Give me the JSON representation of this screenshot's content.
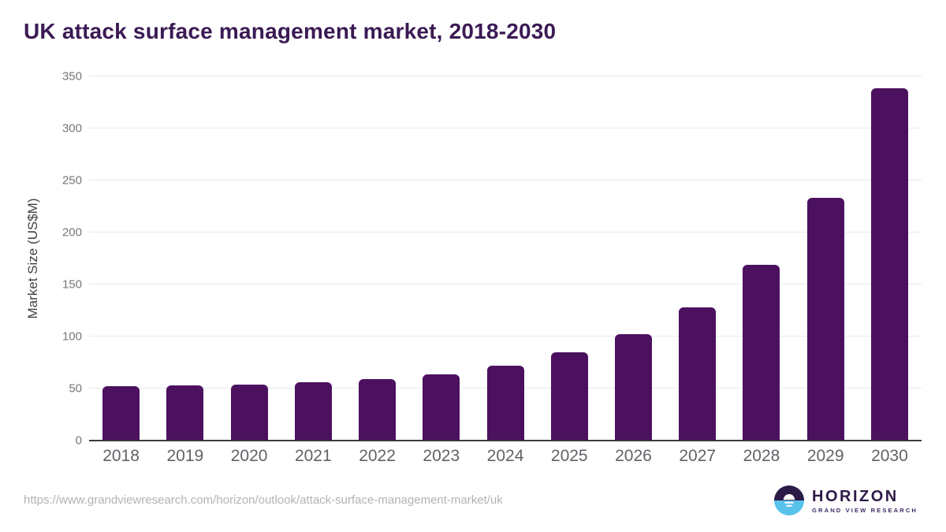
{
  "title": "UK attack surface management market, 2018-2030",
  "source_url": "https://www.grandviewresearch.com/horizon/outlook/attack-surface-management-market/uk",
  "logo": {
    "brand": "HORIZON",
    "subbrand": "GRAND VIEW RESEARCH"
  },
  "colors": {
    "bar": "#4b115f",
    "title": "#3b1a54",
    "gridline": "#e9e9e9",
    "axis_line": "#3a3a3a",
    "y_tick_label": "#757575",
    "x_tick_label": "#5f6368",
    "source_text": "#b3b3b3",
    "logo_dark_purple": "#2d1b47",
    "logo_light_blue": "#58c2ea"
  },
  "chart_data": {
    "type": "bar",
    "title": "UK attack surface management market, 2018-2030",
    "categories": [
      "2018",
      "2019",
      "2020",
      "2021",
      "2022",
      "2023",
      "2024",
      "2025",
      "2026",
      "2027",
      "2028",
      "2029",
      "2030"
    ],
    "values": [
      52,
      53,
      54,
      56,
      59,
      64,
      72,
      85,
      102,
      128,
      169,
      233,
      339
    ],
    "xlabel": "",
    "ylabel": "Market Size (US$M)",
    "ylim": [
      0,
      350
    ],
    "yticks": [
      0,
      50,
      100,
      150,
      200,
      250,
      300,
      350
    ],
    "grid": true,
    "legend": false,
    "bar_color": "#4b115f"
  }
}
